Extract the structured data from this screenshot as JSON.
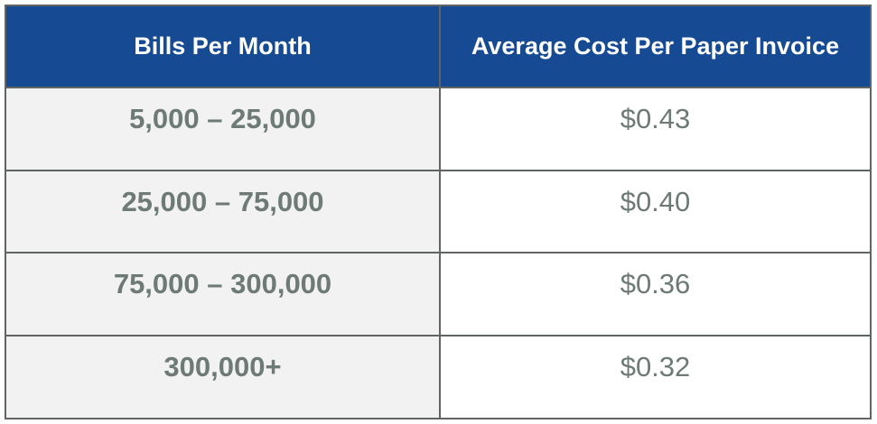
{
  "table": {
    "headers": [
      "Bills Per Month",
      "Average Cost Per Paper Invoice"
    ],
    "rows": [
      [
        "5,000 – 25,000",
        "$0.43"
      ],
      [
        "25,000 – 75,000",
        "$0.40"
      ],
      [
        "75,000 – 300,000",
        "$0.36"
      ],
      [
        "300,000+",
        "$0.32"
      ]
    ]
  },
  "colors": {
    "header_bg": "#164a93",
    "header_text": "#ffffff",
    "body_text": "#6d7a76",
    "first_col_bg": "#f2f2f2",
    "border": "#5f6465"
  }
}
